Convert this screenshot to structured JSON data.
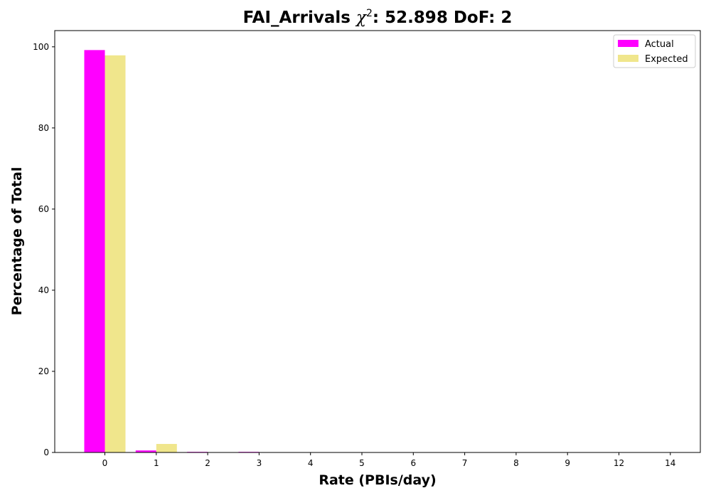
{
  "chart_data": {
    "type": "bar",
    "title_prefix": "FAI_Arrivals ",
    "title_chi": "χ",
    "title_sup": "2",
    "title_suffix": ": 52.898 DoF: 2",
    "xlabel": "Rate (PBIs/day)",
    "ylabel": "Percentage of Total",
    "categories": [
      "0",
      "1",
      "2",
      "3",
      "4",
      "5",
      "6",
      "7",
      "8",
      "9",
      "12",
      "14"
    ],
    "series": [
      {
        "name": "Actual",
        "color": "#ff00ff",
        "values": [
          99.2,
          0.5,
          0.15,
          0.15,
          0,
          0,
          0,
          0,
          0,
          0,
          0,
          0
        ]
      },
      {
        "name": "Expected",
        "color": "#f0e68c",
        "values": [
          97.9,
          2.1,
          0.03,
          0,
          0,
          0,
          0,
          0,
          0,
          0,
          0,
          0
        ]
      }
    ],
    "ylim": [
      0,
      104
    ],
    "yticks": [
      0,
      20,
      40,
      60,
      80,
      100
    ],
    "legend_position": "top-right",
    "grid": false
  }
}
